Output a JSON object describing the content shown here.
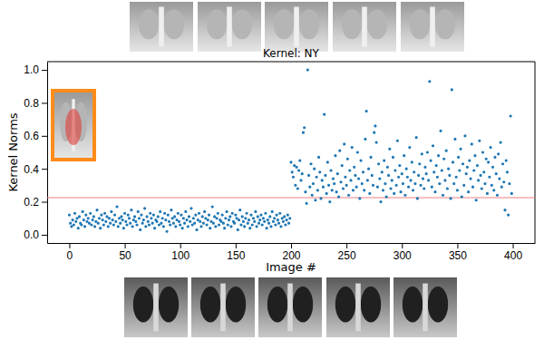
{
  "chart_data": {
    "type": "scatter",
    "title": "Kernel: NY",
    "x_label": "Image #",
    "y_label": "Kernel Norms",
    "color": "#1f77b4",
    "marker": "circle",
    "grid": false,
    "xlim": [
      -20,
      420
    ],
    "ylim": [
      -0.05,
      1.05
    ],
    "xticks": [
      0,
      50,
      100,
      150,
      200,
      250,
      300,
      350,
      400
    ],
    "yticks": [
      {
        "value": 0,
        "label": "0.0"
      },
      {
        "value": 0.2,
        "label": "0.2"
      },
      {
        "value": 0.4,
        "label": "0.4"
      },
      {
        "value": 0.6,
        "label": "0.6"
      },
      {
        "value": 0.8,
        "label": "0.8"
      },
      {
        "value": 1.0,
        "label": "1.0"
      }
    ],
    "reference_line": {
      "value": 0.225,
      "color": "#f08080"
    },
    "x": [
      0,
      1,
      2,
      3,
      4,
      5,
      6,
      7,
      8,
      9,
      10,
      11,
      12,
      13,
      14,
      15,
      16,
      17,
      18,
      19,
      20,
      21,
      22,
      23,
      24,
      25,
      26,
      27,
      28,
      29,
      30,
      31,
      32,
      33,
      34,
      35,
      36,
      37,
      38,
      39,
      40,
      41,
      42,
      43,
      44,
      45,
      46,
      47,
      48,
      49,
      50,
      51,
      52,
      53,
      54,
      55,
      56,
      57,
      58,
      59,
      60,
      61,
      62,
      63,
      64,
      65,
      66,
      67,
      68,
      69,
      70,
      71,
      72,
      73,
      74,
      75,
      76,
      77,
      78,
      79,
      80,
      81,
      82,
      83,
      84,
      85,
      86,
      87,
      88,
      89,
      90,
      91,
      92,
      93,
      94,
      95,
      96,
      97,
      98,
      99,
      100,
      101,
      102,
      103,
      104,
      105,
      106,
      107,
      108,
      109,
      110,
      111,
      112,
      113,
      114,
      115,
      116,
      117,
      118,
      119,
      120,
      121,
      122,
      123,
      124,
      125,
      126,
      127,
      128,
      129,
      130,
      131,
      132,
      133,
      134,
      135,
      136,
      137,
      138,
      139,
      140,
      141,
      142,
      143,
      144,
      145,
      146,
      147,
      148,
      149,
      150,
      151,
      152,
      153,
      154,
      155,
      156,
      157,
      158,
      159,
      160,
      161,
      162,
      163,
      164,
      165,
      166,
      167,
      168,
      169,
      170,
      171,
      172,
      173,
      174,
      175,
      176,
      177,
      178,
      179,
      180,
      181,
      182,
      183,
      184,
      185,
      186,
      187,
      188,
      189,
      190,
      191,
      192,
      193,
      194,
      195,
      196,
      197,
      198,
      199,
      200,
      201,
      202,
      203,
      204,
      205,
      206,
      207,
      208,
      209,
      210,
      211,
      212,
      213,
      214,
      215,
      216,
      217,
      218,
      219,
      220,
      221,
      222,
      223,
      224,
      225,
      226,
      227,
      228,
      229,
      230,
      231,
      232,
      233,
      234,
      235,
      236,
      237,
      238,
      239,
      240,
      241,
      242,
      243,
      244,
      245,
      246,
      247,
      248,
      249,
      250,
      251,
      252,
      253,
      254,
      255,
      256,
      257,
      258,
      259,
      260,
      261,
      262,
      263,
      264,
      265,
      266,
      267,
      268,
      269,
      270,
      271,
      272,
      273,
      274,
      275,
      276,
      277,
      278,
      279,
      280,
      281,
      282,
      283,
      284,
      285,
      286,
      287,
      288,
      289,
      290,
      291,
      292,
      293,
      294,
      295,
      296,
      297,
      298,
      299,
      300,
      301,
      302,
      303,
      304,
      305,
      306,
      307,
      308,
      309,
      310,
      311,
      312,
      313,
      314,
      315,
      316,
      317,
      318,
      319,
      320,
      321,
      322,
      323,
      324,
      325,
      326,
      327,
      328,
      329,
      330,
      331,
      332,
      333,
      334,
      335,
      336,
      337,
      338,
      339,
      340,
      341,
      342,
      343,
      344,
      345,
      346,
      347,
      348,
      349,
      350,
      351,
      352,
      353,
      354,
      355,
      356,
      357,
      358,
      359,
      360,
      361,
      362,
      363,
      364,
      365,
      366,
      367,
      368,
      369,
      370,
      371,
      372,
      373,
      374,
      375,
      376,
      377,
      378,
      379,
      380,
      381,
      382,
      383,
      384,
      385,
      386,
      387,
      388,
      389,
      390,
      391,
      392,
      393,
      394,
      395,
      396,
      397,
      398,
      399
    ],
    "values": [
      0.12,
      0.07,
      0.05,
      0.09,
      0.06,
      0.13,
      0.08,
      0.1,
      0.04,
      0.11,
      0.07,
      0.06,
      0.14,
      0.09,
      0.05,
      0.12,
      0.08,
      0.1,
      0.07,
      0.13,
      0.06,
      0.09,
      0.11,
      0.05,
      0.08,
      0.15,
      0.07,
      0.1,
      0.04,
      0.12,
      0.09,
      0.06,
      0.13,
      0.08,
      0.11,
      0.05,
      0.1,
      0.07,
      0.14,
      0.09,
      0.06,
      0.12,
      0.08,
      0.17,
      0.05,
      0.1,
      0.07,
      0.11,
      0.09,
      0.04,
      0.13,
      0.08,
      0.06,
      0.12,
      0.1,
      0.07,
      0.15,
      0.05,
      0.09,
      0.11,
      0.08,
      0.06,
      0.14,
      0.1,
      0.03,
      0.12,
      0.07,
      0.09,
      0.16,
      0.05,
      0.11,
      0.08,
      0.06,
      0.13,
      0.1,
      0.07,
      0.12,
      0.04,
      0.09,
      0.08,
      0.11,
      0.06,
      0.14,
      0.07,
      0.1,
      0.05,
      0.13,
      0.09,
      0.02,
      0.12,
      0.08,
      0.06,
      0.15,
      0.1,
      0.07,
      0.11,
      0.05,
      0.09,
      0.13,
      0.08,
      0.06,
      0.12,
      0.04,
      0.1,
      0.07,
      0.14,
      0.09,
      0.05,
      0.11,
      0.08,
      0.16,
      0.06,
      0.1,
      0.07,
      0.12,
      0.03,
      0.09,
      0.13,
      0.08,
      0.05,
      0.11,
      0.07,
      0.14,
      0.1,
      0.06,
      0.09,
      0.12,
      0.04,
      0.08,
      0.17,
      0.07,
      0.11,
      0.05,
      0.1,
      0.13,
      0.06,
      0.09,
      0.08,
      0.12,
      0.07,
      0.04,
      0.1,
      0.14,
      0.06,
      0.09,
      0.11,
      0.05,
      0.13,
      0.08,
      0.07,
      0.12,
      0.1,
      0.03,
      0.09,
      0.15,
      0.06,
      0.11,
      0.08,
      0.05,
      0.1,
      0.13,
      0.07,
      0.09,
      0.04,
      0.12,
      0.06,
      0.1,
      0.08,
      0.14,
      0.05,
      0.11,
      0.07,
      0.09,
      0.12,
      0.06,
      0.1,
      0.08,
      0.13,
      0.04,
      0.09,
      0.07,
      0.11,
      0.05,
      0.14,
      0.08,
      0.1,
      0.06,
      0.12,
      0.09,
      0.07,
      0.13,
      0.05,
      0.1,
      0.08,
      0.11,
      0.06,
      0.09,
      0.12,
      0.07,
      0.1,
      0.44,
      0.38,
      0.35,
      0.42,
      0.3,
      0.41,
      0.28,
      0.39,
      0.45,
      0.33,
      0.37,
      0.62,
      0.65,
      0.26,
      0.19,
      1.0,
      0.36,
      0.29,
      0.43,
      0.24,
      0.31,
      0.4,
      0.21,
      0.35,
      0.27,
      0.47,
      0.38,
      0.22,
      0.33,
      0.29,
      0.73,
      0.36,
      0.25,
      0.44,
      0.3,
      0.2,
      0.39,
      0.27,
      0.34,
      0.31,
      0.48,
      0.26,
      0.37,
      0.23,
      0.51,
      0.32,
      0.42,
      0.28,
      0.55,
      0.35,
      0.3,
      0.46,
      0.24,
      0.39,
      0.33,
      0.53,
      0.27,
      0.41,
      0.36,
      0.29,
      0.5,
      0.34,
      0.22,
      0.45,
      0.31,
      0.38,
      0.27,
      0.58,
      0.75,
      0.33,
      0.4,
      0.25,
      0.47,
      0.36,
      0.3,
      0.62,
      0.66,
      0.56,
      0.29,
      0.43,
      0.34,
      0.2,
      0.38,
      0.27,
      0.45,
      0.31,
      0.23,
      0.41,
      0.36,
      0.52,
      0.28,
      0.33,
      0.47,
      0.25,
      0.39,
      0.3,
      0.57,
      0.35,
      0.42,
      0.26,
      0.37,
      0.31,
      0.48,
      0.24,
      0.4,
      0.35,
      0.29,
      0.53,
      0.33,
      0.44,
      0.27,
      0.38,
      0.31,
      0.59,
      0.22,
      0.36,
      0.43,
      0.3,
      0.49,
      0.34,
      0.28,
      0.41,
      0.37,
      0.5,
      0.33,
      0.93,
      0.45,
      0.29,
      0.54,
      0.38,
      0.26,
      0.42,
      0.35,
      0.48,
      0.31,
      0.63,
      0.39,
      0.24,
      0.46,
      0.33,
      0.51,
      0.28,
      0.4,
      0.36,
      0.22,
      0.88,
      0.44,
      0.31,
      0.58,
      0.35,
      0.27,
      0.47,
      0.39,
      0.52,
      0.23,
      0.43,
      0.3,
      0.6,
      0.37,
      0.41,
      0.26,
      0.45,
      0.34,
      0.55,
      0.29,
      0.39,
      0.48,
      0.21,
      0.42,
      0.33,
      0.57,
      0.36,
      0.28,
      0.5,
      0.38,
      0.31,
      0.46,
      0.25,
      0.44,
      0.35,
      0.53,
      0.3,
      0.41,
      0.27,
      0.47,
      0.37,
      0.24,
      0.49,
      0.34,
      0.56,
      0.29,
      0.43,
      0.32,
      0.15,
      0.45,
      0.38,
      0.12,
      0.31,
      0.72,
      0.25
    ]
  }
}
